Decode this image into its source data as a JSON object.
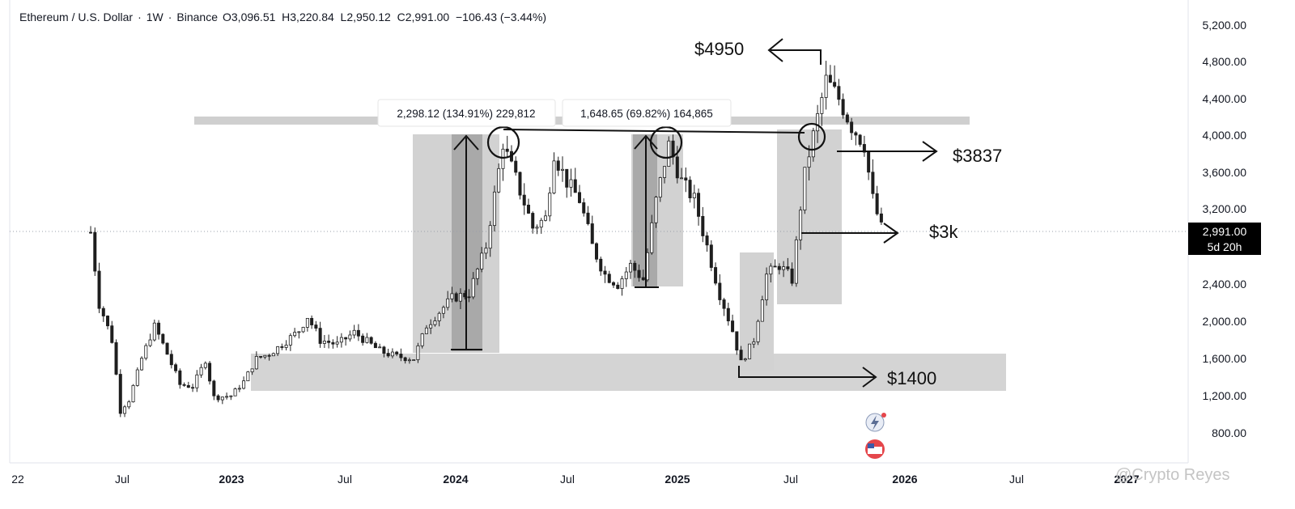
{
  "header": {
    "symbol": "Ethereum / U.S. Dollar",
    "interval": "1W",
    "exchange": "Binance",
    "ohlc": "O3,096.51  H3,220.84  L2,950.12  C2,991.00  −106.43 (−3.44%)"
  },
  "price_tag": {
    "price": "2,991.00",
    "countdown": "5d 20h"
  },
  "measure_boxes": [
    "2,298.12 (134.91%) 229,812",
    "1,648.65 (69.82%) 164,865"
  ],
  "targets": [
    "$4950",
    "$3837",
    "$3k",
    "$1400"
  ],
  "watermark": "@Crypto Reyes",
  "colors": {
    "candle": "#1e1e1e",
    "zone": "#cfcfcf",
    "price_tag": "#000000"
  },
  "chart_data": {
    "type": "line",
    "title": "Ethereum / U.S. Dollar · 1W · Binance",
    "ylim": [
      600,
      5300
    ],
    "y_ticks": [
      "5,200.00",
      "4,800.00",
      "4,400.00",
      "4,000.00",
      "3,600.00",
      "3,200.00",
      "2,400.00",
      "2,000.00",
      "1,600.00",
      "1,200.00",
      "800.00"
    ],
    "x_ticks": [
      "22",
      "Jul",
      "2023",
      "Jul",
      "2024",
      "Jul",
      "2025",
      "Jul",
      "2026",
      "Jul",
      "2027"
    ],
    "series": [
      {
        "points": [
          [
            "2022-05-01",
            2950
          ],
          [
            "2022-05-15",
            2200
          ],
          [
            "2022-06-05",
            1800
          ],
          [
            "2022-06-19",
            1050
          ],
          [
            "2022-07-03",
            1150
          ],
          [
            "2022-07-24",
            1600
          ],
          [
            "2022-08-14",
            1950
          ],
          [
            "2022-09-04",
            1650
          ],
          [
            "2022-09-25",
            1320
          ],
          [
            "2022-10-16",
            1300
          ],
          [
            "2022-11-06",
            1580
          ],
          [
            "2022-11-20",
            1180
          ],
          [
            "2022-12-18",
            1200
          ],
          [
            "2023-01-08",
            1350
          ],
          [
            "2023-01-29",
            1600
          ],
          [
            "2023-02-19",
            1650
          ],
          [
            "2023-03-12",
            1750
          ],
          [
            "2023-04-09",
            1900
          ],
          [
            "2023-04-23",
            2050
          ],
          [
            "2023-05-14",
            1800
          ],
          [
            "2023-06-11",
            1750
          ],
          [
            "2023-07-09",
            1880
          ],
          [
            "2023-08-20",
            1680
          ],
          [
            "2023-09-17",
            1620
          ],
          [
            "2023-10-15",
            1600
          ],
          [
            "2023-11-05",
            1950
          ],
          [
            "2023-11-26",
            2100
          ],
          [
            "2023-12-17",
            2250
          ],
          [
            "2024-01-14",
            2300
          ],
          [
            "2024-02-11",
            2800
          ],
          [
            "2024-03-10",
            3900
          ],
          [
            "2024-04-07",
            3400
          ],
          [
            "2024-04-28",
            3000
          ],
          [
            "2024-05-19",
            3100
          ],
          [
            "2024-06-02",
            3800
          ],
          [
            "2024-06-23",
            3500
          ],
          [
            "2024-07-14",
            3300
          ],
          [
            "2024-08-04",
            2800
          ],
          [
            "2024-08-25",
            2500
          ],
          [
            "2024-09-15",
            2400
          ],
          [
            "2024-10-06",
            2600
          ],
          [
            "2024-10-27",
            2450
          ],
          [
            "2024-11-17",
            3300
          ],
          [
            "2024-12-08",
            3900
          ],
          [
            "2024-12-29",
            3500
          ],
          [
            "2025-01-19",
            3300
          ],
          [
            "2025-02-09",
            2800
          ],
          [
            "2025-03-02",
            2300
          ],
          [
            "2025-03-23",
            1900
          ],
          [
            "2025-04-06",
            1550
          ],
          [
            "2025-04-27",
            1800
          ],
          [
            "2025-05-18",
            2500
          ],
          [
            "2025-06-08",
            2600
          ],
          [
            "2025-06-29",
            2450
          ],
          [
            "2025-07-20",
            3600
          ],
          [
            "2025-08-10",
            4200
          ],
          [
            "2025-08-24",
            4600
          ],
          [
            "2025-09-14",
            4400
          ],
          [
            "2025-10-05",
            4100
          ],
          [
            "2025-10-26",
            3900
          ],
          [
            "2025-11-09",
            3300
          ],
          [
            "2025-11-23",
            2991
          ]
        ]
      }
    ]
  }
}
